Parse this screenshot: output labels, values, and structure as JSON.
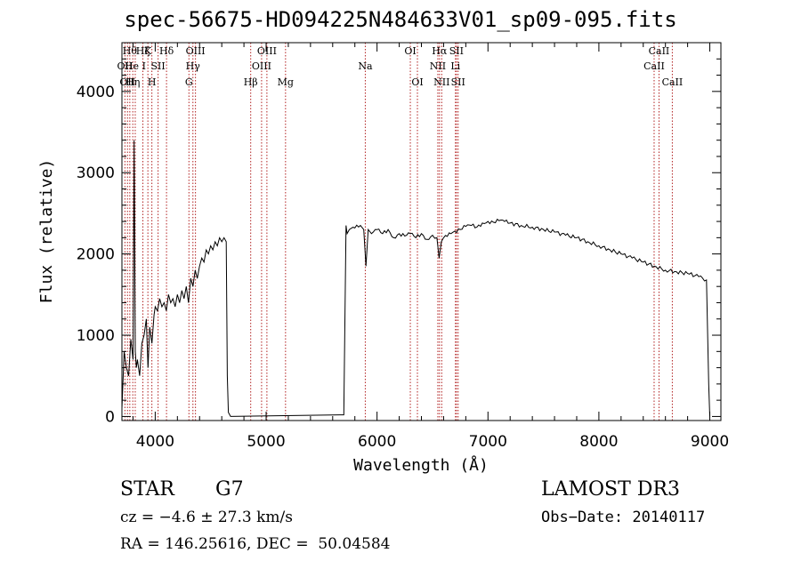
{
  "chart_data": {
    "type": "line",
    "title": "spec-56675-HD094225N484633V01_sp09-095.fits",
    "xlabel": "Wavelength (Å)",
    "ylabel": "Flux (relative)",
    "xlim": [
      3700,
      9100
    ],
    "ylim": [
      -50,
      4600
    ],
    "x_ticks": [
      4000,
      5000,
      6000,
      7000,
      8000,
      9000
    ],
    "y_ticks": [
      0,
      1000,
      2000,
      3000,
      4000
    ],
    "grid": false,
    "series": [
      {
        "x": [
          3700,
          3720,
          3740,
          3760,
          3780,
          3800,
          3810,
          3820,
          3830,
          3840,
          3860,
          3880,
          3900,
          3920,
          3935,
          3950,
          3970,
          3990,
          4000,
          4020,
          4040,
          4060,
          4080,
          4100,
          4120,
          4140,
          4160,
          4180,
          4200,
          4220,
          4240,
          4260,
          4280,
          4300,
          4320,
          4340,
          4360,
          4380,
          4400,
          4420,
          4440,
          4460,
          4480,
          4500,
          4520,
          4540,
          4560,
          4580,
          4600,
          4620,
          4640,
          4650,
          4660,
          4680,
          5700,
          5720,
          5730,
          5750,
          5800,
          5850,
          5880,
          5900,
          5920,
          5950,
          6000,
          6050,
          6100,
          6150,
          6200,
          6250,
          6300,
          6350,
          6400,
          6450,
          6500,
          6540,
          6560,
          6580,
          6600,
          6650,
          6700,
          6750,
          6800,
          6850,
          6900,
          6950,
          7000,
          7050,
          7100,
          7150,
          7200,
          7300,
          7400,
          7500,
          7600,
          7700,
          7800,
          7900,
          8000,
          8100,
          8200,
          8300,
          8400,
          8500,
          8600,
          8700,
          8800,
          8900,
          8970,
          8990,
          9000
        ],
        "y": [
          100,
          800,
          600,
          500,
          950,
          700,
          3400,
          800,
          600,
          700,
          500,
          900,
          1000,
          1200,
          600,
          1100,
          900,
          1250,
          1350,
          1300,
          1450,
          1350,
          1400,
          1300,
          1500,
          1400,
          1450,
          1350,
          1500,
          1400,
          1550,
          1450,
          1600,
          1400,
          1700,
          1600,
          1800,
          1700,
          1850,
          1950,
          1900,
          2050,
          2000,
          2100,
          2050,
          2150,
          2100,
          2200,
          2150,
          2200,
          2150,
          500,
          50,
          0,
          20,
          2350,
          2250,
          2300,
          2320,
          2350,
          2300,
          1850,
          2300,
          2250,
          2300,
          2250,
          2300,
          2200,
          2250,
          2220,
          2250,
          2200,
          2250,
          2180,
          2230,
          2200,
          1950,
          2150,
          2200,
          2260,
          2280,
          2300,
          2340,
          2350,
          2330,
          2380,
          2400,
          2390,
          2410,
          2400,
          2380,
          2350,
          2330,
          2300,
          2270,
          2230,
          2200,
          2150,
          2100,
          2050,
          2000,
          1950,
          1900,
          1850,
          1800,
          1780,
          1760,
          1720,
          1680,
          400,
          0
        ]
      }
    ],
    "lines": [
      {
        "x": 3727,
        "label": "OII",
        "row": 2
      },
      {
        "x": 3750,
        "label": "OII",
        "row": 3
      },
      {
        "x": 3771,
        "label": "Hθ",
        "row": 1
      },
      {
        "x": 3798,
        "label": "Hη",
        "row": 3
      },
      {
        "x": 3820,
        "label": "He I",
        "row": 2
      },
      {
        "x": 3889,
        "label": "Hζ",
        "row": 1
      },
      {
        "x": 3934,
        "label": "K",
        "row": 1
      },
      {
        "x": 3970,
        "label": "H",
        "row": 3
      },
      {
        "x": 4026,
        "label": "SII",
        "row": 2
      },
      {
        "x": 4102,
        "label": "Hδ",
        "row": 1
      },
      {
        "x": 4304,
        "label": "G",
        "row": 3
      },
      {
        "x": 4340,
        "label": "Hγ",
        "row": 2
      },
      {
        "x": 4363,
        "label": "OIII",
        "row": 1
      },
      {
        "x": 4861,
        "label": "Hβ",
        "row": 3
      },
      {
        "x": 4959,
        "label": "OIII",
        "row": 2
      },
      {
        "x": 5007,
        "label": "OIII",
        "row": 1
      },
      {
        "x": 5175,
        "label": "Mg",
        "row": 3
      },
      {
        "x": 5894,
        "label": "Na",
        "row": 2
      },
      {
        "x": 6300,
        "label": "OI",
        "row": 1
      },
      {
        "x": 6364,
        "label": "OI",
        "row": 3
      },
      {
        "x": 6548,
        "label": "NII",
        "row": 2
      },
      {
        "x": 6563,
        "label": "Hα",
        "row": 1
      },
      {
        "x": 6583,
        "label": "NII",
        "row": 3
      },
      {
        "x": 6707,
        "label": "Li",
        "row": 2
      },
      {
        "x": 6716,
        "label": "SII",
        "row": 1
      },
      {
        "x": 6731,
        "label": "SII",
        "row": 3
      },
      {
        "x": 8498,
        "label": "CaII",
        "row": 2
      },
      {
        "x": 8542,
        "label": "CaII",
        "row": 1
      },
      {
        "x": 8662,
        "label": "CaII",
        "row": 3
      }
    ],
    "line_color": "#b22222"
  },
  "info": {
    "object_type": "STAR",
    "subclass": "G7",
    "survey": "LAMOST DR3",
    "cz": "cz = −4.6 ± 27.3 km/s",
    "obs_date": "Obs−Date: 20140117",
    "coords": "RA = 146.25616, DEC =  50.04584"
  }
}
